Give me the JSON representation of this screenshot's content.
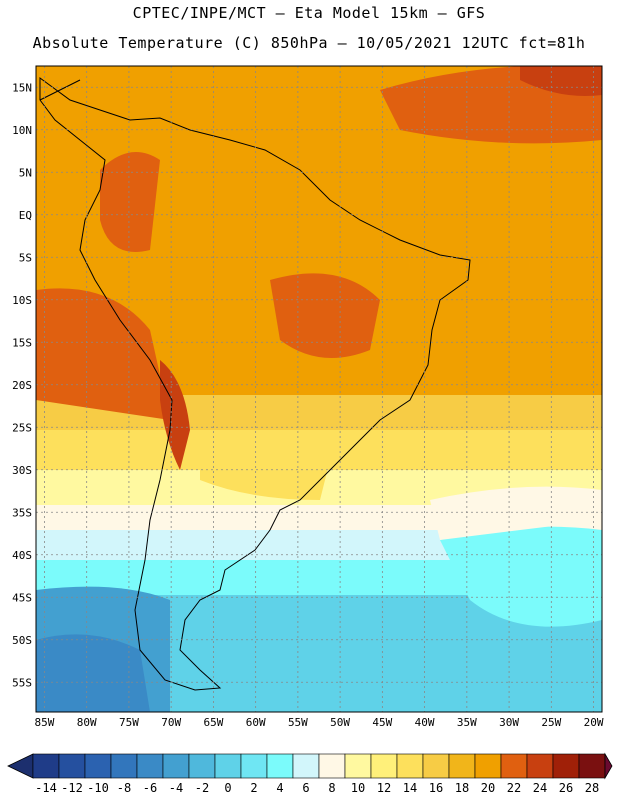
{
  "header": {
    "line1": "CPTEC/INPE/MCT –  Eta Model 15km – GFS",
    "line2": "Absolute Temperature (C) 850hPa – 10/05/2021 12UTC fct=81h"
  },
  "map": {
    "lon_labels": [
      "85W",
      "80W",
      "75W",
      "70W",
      "65W",
      "60W",
      "55W",
      "50W",
      "45W",
      "40W",
      "35W",
      "30W",
      "25W",
      "20W"
    ],
    "lat_labels": [
      "15N",
      "10N",
      "5N",
      "EQ",
      "5S",
      "10S",
      "15S",
      "20S",
      "25S",
      "30S",
      "35S",
      "40S",
      "45S",
      "50S",
      "55S"
    ],
    "lon_range": [
      -86,
      -19
    ],
    "lat_range": [
      17.5,
      -58.5
    ]
  },
  "colorbar": {
    "tick_labels": [
      "-14",
      "-12",
      "-10",
      "-8",
      "-6",
      "-4",
      "-2",
      "0",
      "2",
      "4",
      "6",
      "8",
      "10",
      "12",
      "14",
      "16",
      "18",
      "20",
      "22",
      "24",
      "26",
      "28"
    ],
    "colors": [
      "#1f3c88",
      "#25509f",
      "#2b62b0",
      "#3276bc",
      "#3a8ac6",
      "#43a0d0",
      "#4fb8dc",
      "#5fd2e8",
      "#6fe6f3",
      "#7bfbfb",
      "#d2f6fb",
      "#fff8e6",
      "#fff9a0",
      "#fff07a",
      "#fde05c",
      "#f7cc45",
      "#f1b51a",
      "#f0a000",
      "#e06010",
      "#c84010",
      "#a02008",
      "#7a1010"
    ],
    "under_color": "#1c2f6e",
    "over_color": "#6a0a30"
  }
}
